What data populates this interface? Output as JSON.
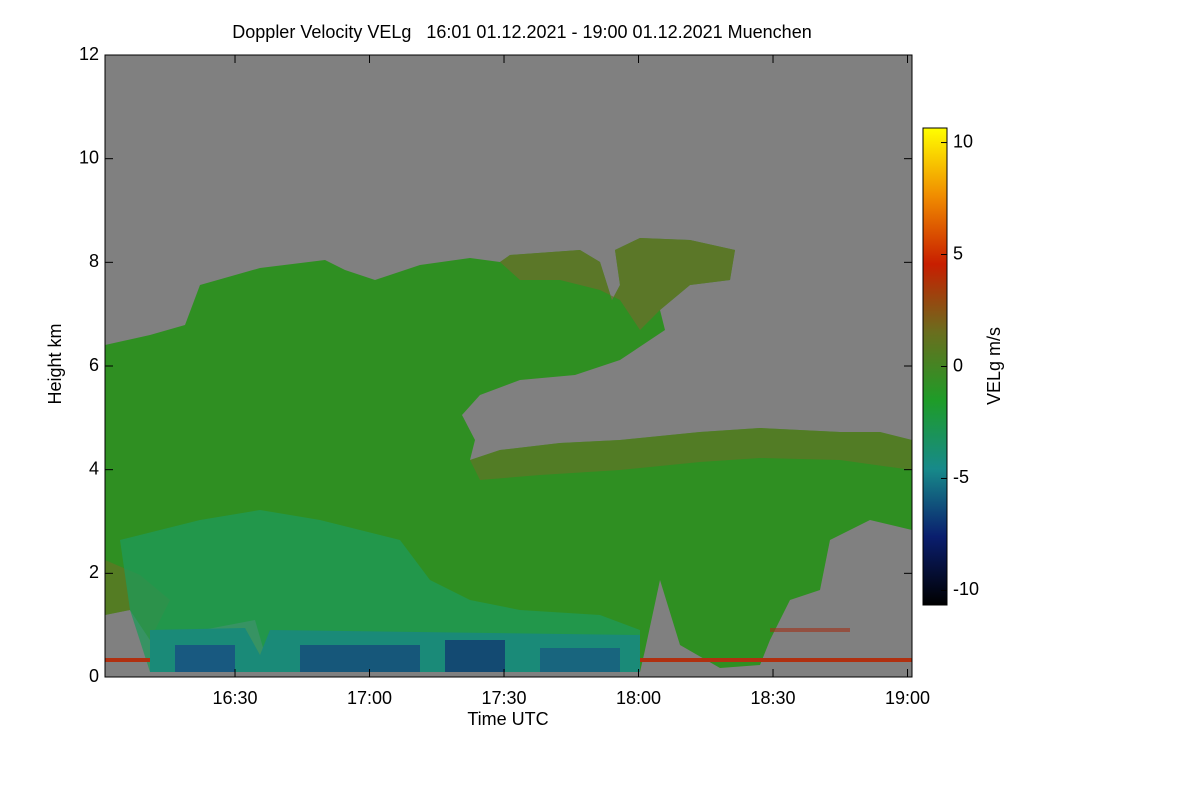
{
  "chart_data": {
    "type": "heatmap",
    "title": "Doppler Velocity VELg   16:01 01.12.2021 - 19:00 01.12.2021 Muenchen",
    "x_label": "Time UTC",
    "y_label": "Height km",
    "colorbar_label": "VELg m/s",
    "xlim": [
      961,
      1141
    ],
    "xticks": [
      {
        "value": 990,
        "label": "16:30"
      },
      {
        "value": 1020,
        "label": "17:00"
      },
      {
        "value": 1050,
        "label": "17:30"
      },
      {
        "value": 1080,
        "label": "18:00"
      },
      {
        "value": 1110,
        "label": "18:30"
      },
      {
        "value": 1140,
        "label": "19:00"
      }
    ],
    "ylim": [
      0,
      12
    ],
    "yticks": [
      0,
      2,
      4,
      6,
      8,
      10,
      12
    ],
    "clim": [
      -10.65,
      10.65
    ],
    "cticks": [
      -10,
      -5,
      0,
      5,
      10
    ],
    "colormap": [
      "#000000",
      "#0a1e6e",
      "#178a8a",
      "#1e9c28",
      "#6a6e1e",
      "#c81e00",
      "#f08c00",
      "#ffff00"
    ]
  }
}
